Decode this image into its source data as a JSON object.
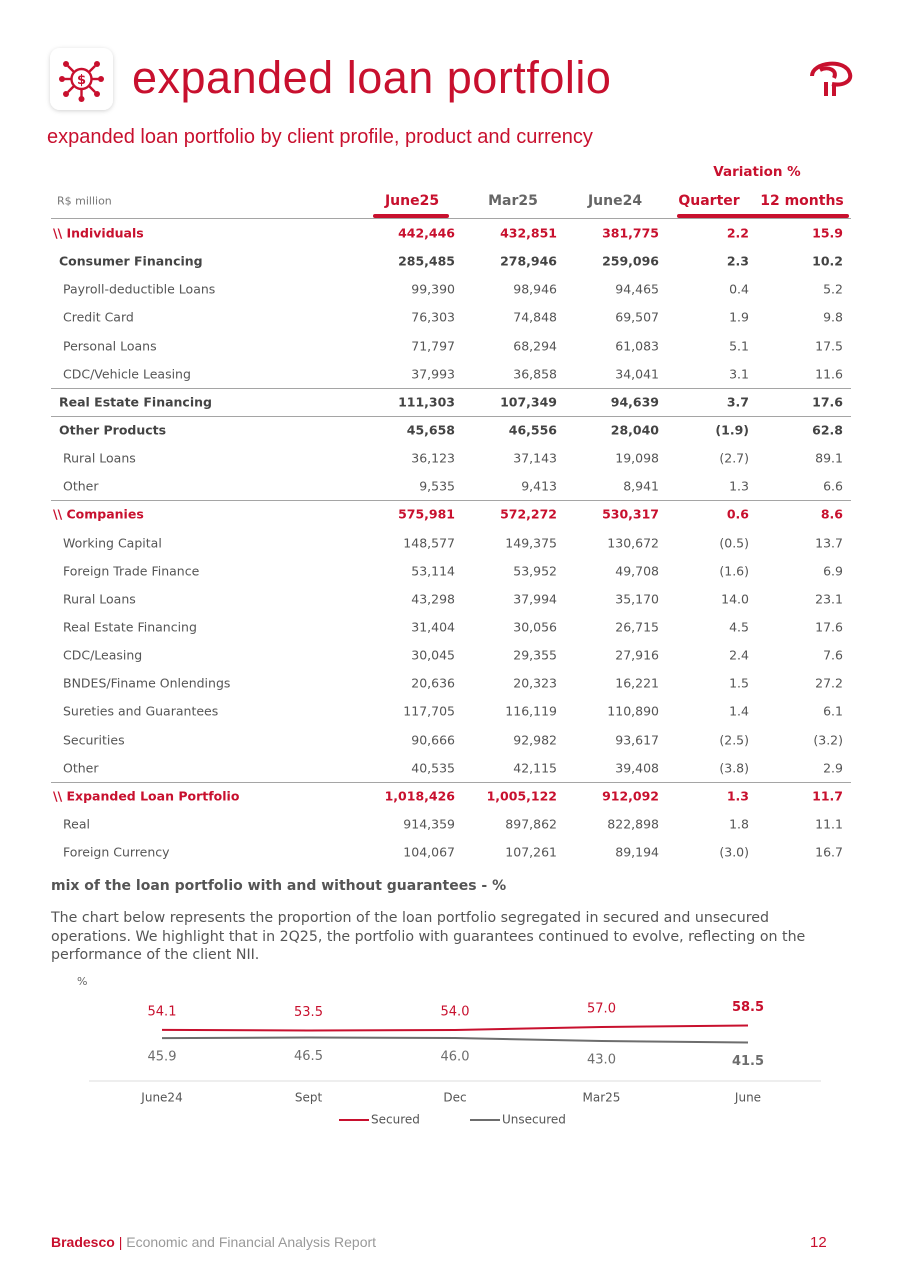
{
  "header": {
    "title": "expanded loan portfolio"
  },
  "subtitle": "expanded loan portfolio by client profile, product and currency",
  "table": {
    "unit": "R$ million",
    "group_header": "Variation %",
    "columns": [
      "June25",
      "Mar25",
      "June24",
      "Quarter",
      "12 months"
    ],
    "sections": [
      {
        "label": "\\\\ Individuals",
        "values": [
          "442,446",
          "432,851",
          "381,775",
          "2.2",
          "15.9"
        ],
        "rows": [
          {
            "label": "Consumer Financing",
            "values": [
              "285,485",
              "278,946",
              "259,096",
              "2.3",
              "10.2"
            ],
            "rows": [
              {
                "label": "Payroll-deductible Loans",
                "values": [
                  "99,390",
                  "98,946",
                  "94,465",
                  "0.4",
                  "5.2"
                ]
              },
              {
                "label": "Credit Card",
                "values": [
                  "76,303",
                  "74,848",
                  "69,507",
                  "1.9",
                  "9.8"
                ]
              },
              {
                "label": "Personal Loans",
                "values": [
                  "71,797",
                  "68,294",
                  "61,083",
                  "5.1",
                  "17.5"
                ]
              },
              {
                "label": "CDC/Vehicle Leasing",
                "values": [
                  "37,993",
                  "36,858",
                  "34,041",
                  "3.1",
                  "11.6"
                ]
              }
            ]
          },
          {
            "label": "Real Estate Financing",
            "values": [
              "111,303",
              "107,349",
              "94,639",
              "3.7",
              "17.6"
            ],
            "rows": []
          },
          {
            "label": "Other Products",
            "values": [
              "45,658",
              "46,556",
              "28,040",
              "(1.9)",
              "62.8"
            ],
            "rows": [
              {
                "label": "Rural Loans",
                "values": [
                  "36,123",
                  "37,143",
                  "19,098",
                  "(2.7)",
                  "89.1"
                ]
              },
              {
                "label": "Other",
                "values": [
                  "9,535",
                  "9,413",
                  "8,941",
                  "1.3",
                  "6.6"
                ]
              }
            ]
          }
        ]
      },
      {
        "label": "\\\\ Companies",
        "values": [
          "575,981",
          "572,272",
          "530,317",
          "0.6",
          "8.6"
        ],
        "rows": [
          {
            "label": "Working Capital",
            "values": [
              "148,577",
              "149,375",
              "130,672",
              "(0.5)",
              "13.7"
            ]
          },
          {
            "label": "Foreign Trade Finance",
            "values": [
              "53,114",
              "53,952",
              "49,708",
              "(1.6)",
              "6.9"
            ]
          },
          {
            "label": "Rural Loans",
            "values": [
              "43,298",
              "37,994",
              "35,170",
              "14.0",
              "23.1"
            ]
          },
          {
            "label": "Real Estate Financing",
            "values": [
              "31,404",
              "30,056",
              "26,715",
              "4.5",
              "17.6"
            ]
          },
          {
            "label": "CDC/Leasing",
            "values": [
              "30,045",
              "29,355",
              "27,916",
              "2.4",
              "7.6"
            ]
          },
          {
            "label": "BNDES/Finame Onlendings",
            "values": [
              "20,636",
              "20,323",
              "16,221",
              "1.5",
              "27.2"
            ]
          },
          {
            "label": "Sureties and Guarantees",
            "values": [
              "117,705",
              "116,119",
              "110,890",
              "1.4",
              "6.1"
            ]
          },
          {
            "label": "Securities",
            "values": [
              "90,666",
              "92,982",
              "93,617",
              "(2.5)",
              "(3.2)"
            ]
          },
          {
            "label": "Other",
            "values": [
              "40,535",
              "42,115",
              "39,408",
              "(3.8)",
              "2.9"
            ]
          }
        ]
      },
      {
        "label": "\\\\ Expanded Loan Portfolio",
        "values": [
          "1,018,426",
          "1,005,122",
          "912,092",
          "1.3",
          "11.7"
        ],
        "rows": [
          {
            "label": "Real",
            "values": [
              "914,359",
              "897,862",
              "822,898",
              "1.8",
              "11.1"
            ]
          },
          {
            "label": "Foreign Currency",
            "values": [
              "104,067",
              "107,261",
              "89,194",
              "(3.0)",
              "16.7"
            ]
          }
        ]
      }
    ]
  },
  "mix": {
    "heading": "mix of the loan portfolio with and without guarantees - %",
    "text": "The chart below represents the proportion of the loan portfolio segregated in secured and unsecured operations. We highlight that in 2Q25, the portfolio with guarantees continued to evolve, reflecting on the performance of the client NII."
  },
  "chart_data": {
    "type": "line",
    "y_label": "%",
    "categories": [
      "June24",
      "Sept",
      "Dec",
      "Mar25",
      "June"
    ],
    "ylim": [
      0,
      100
    ],
    "series": [
      {
        "name": "Secured",
        "color": "#c8102e",
        "values": [
          54.1,
          53.5,
          54.0,
          57.0,
          58.5
        ],
        "value_labels": [
          "54.1",
          "53.5",
          "54.0",
          "57.0",
          "58.5"
        ]
      },
      {
        "name": "Unsecured",
        "color": "#6d6d6d",
        "values": [
          45.9,
          46.5,
          46.0,
          43.0,
          41.5
        ],
        "value_labels": [
          "45.9",
          "46.5",
          "46.0",
          "43.0",
          "41.5"
        ]
      }
    ]
  },
  "footer": {
    "brand": "Bradesco",
    "separator": "|",
    "report": "Economic and Financial Analysis Report",
    "page": "12"
  }
}
